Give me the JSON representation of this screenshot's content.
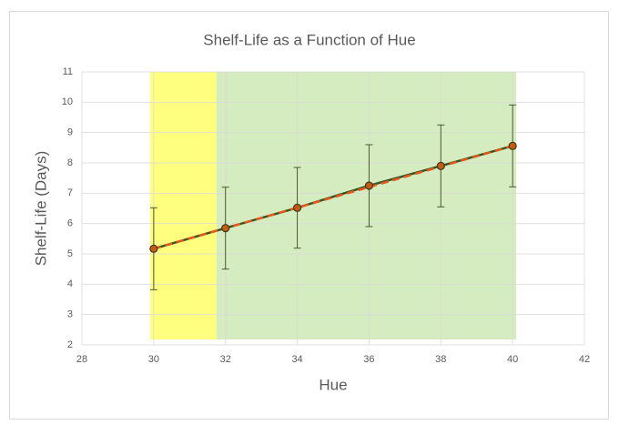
{
  "chart_data": {
    "type": "scatter",
    "title": "Shelf-Life as a Function of Hue",
    "x_label": "Hue",
    "y_label": "Shelf-Life (Days)",
    "xlim": [
      28,
      42
    ],
    "xticks": [
      28,
      30,
      32,
      34,
      36,
      38,
      40,
      42
    ],
    "ylim": [
      2,
      11
    ],
    "yticks": [
      2,
      3,
      4,
      5,
      6,
      7,
      8,
      9,
      10,
      11
    ],
    "grid": true,
    "bands": [
      {
        "color": "#ffff7f",
        "x": [
          29.9,
          31.75
        ],
        "y": [
          2.18,
          11
        ]
      },
      {
        "color": "#d4ecbf",
        "x": [
          31.75,
          40.1
        ],
        "y": [
          2.18,
          11
        ]
      }
    ],
    "series": [
      {
        "color": "#375623",
        "marker_color": "#c55a11",
        "x": [
          30,
          32,
          34,
          36,
          38,
          40
        ],
        "values": [
          5.17,
          5.85,
          6.52,
          7.25,
          7.9,
          8.56
        ],
        "errors": [
          1.35,
          1.35,
          1.33,
          1.35,
          1.35,
          1.35
        ]
      }
    ],
    "trendline": {
      "color": "#e8561a",
      "x": [
        30,
        40
      ],
      "values": [
        5.17,
        8.56
      ]
    }
  }
}
